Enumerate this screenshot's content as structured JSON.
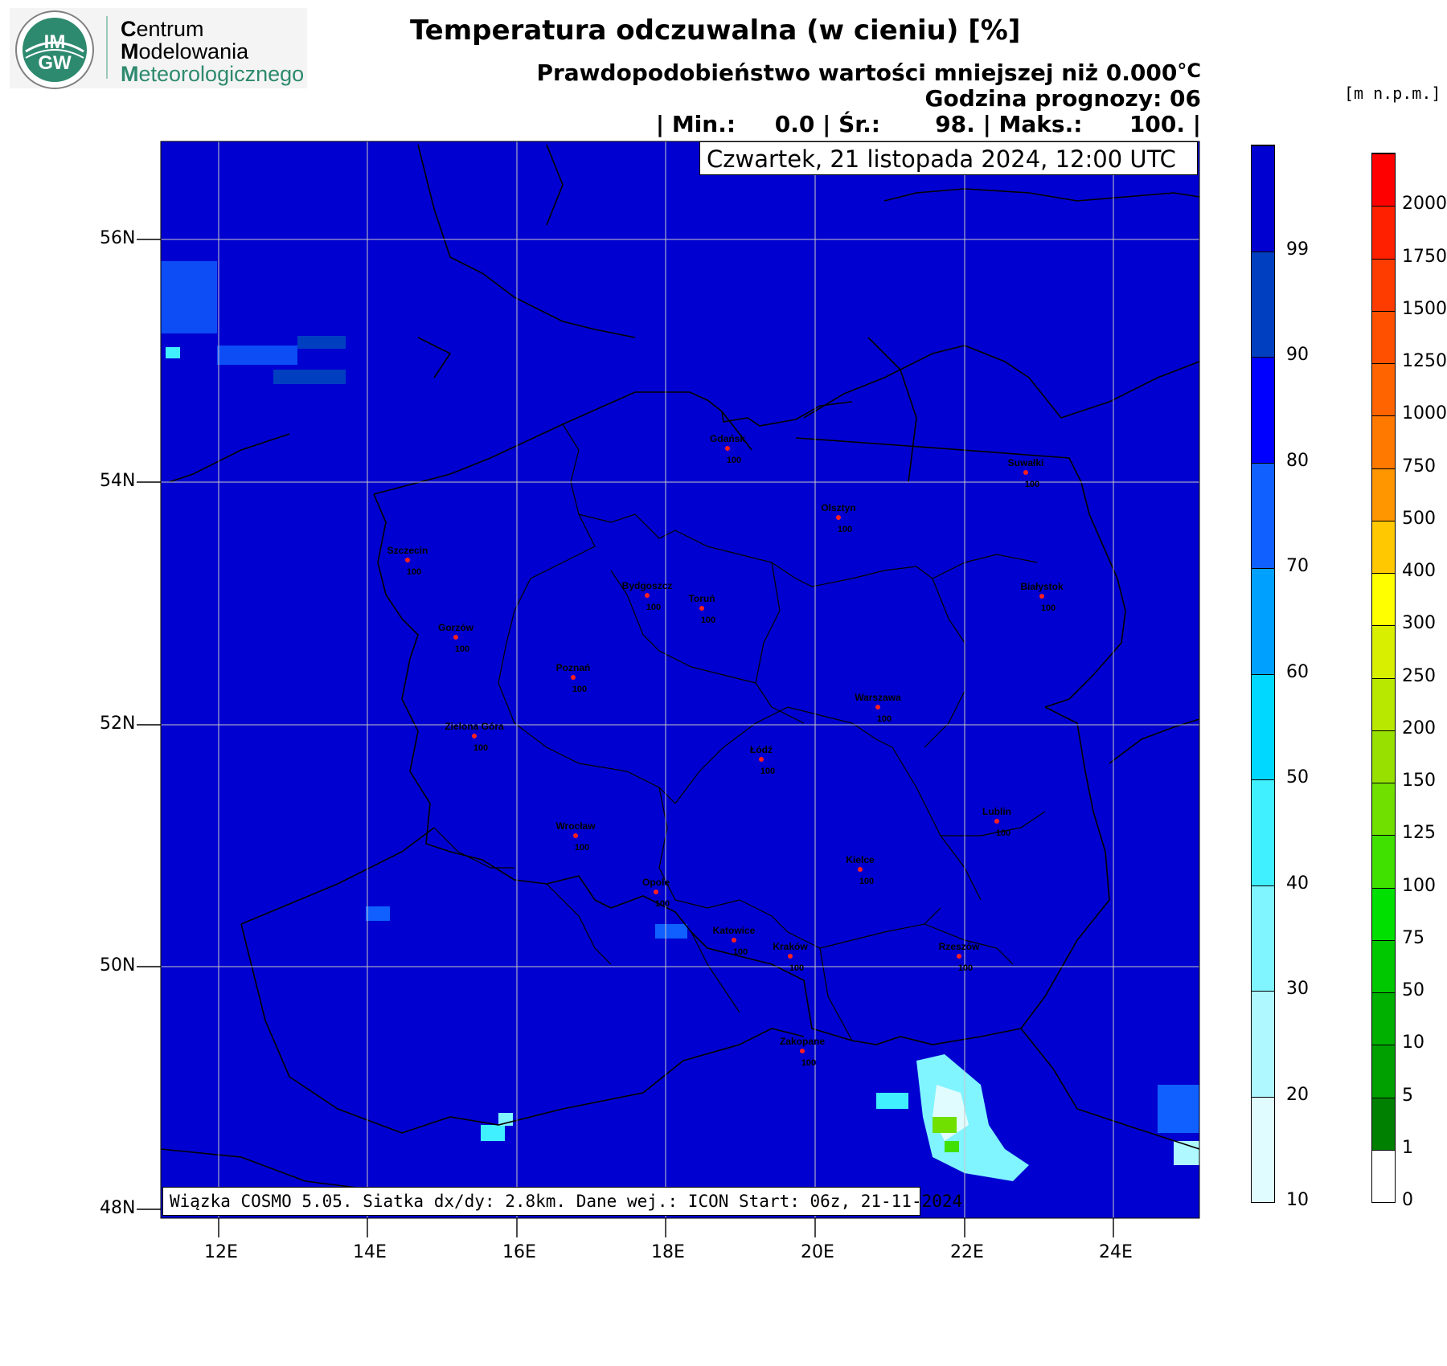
{
  "logo": {
    "badge_text_top": "IM",
    "badge_text_bottom": "GW",
    "line1_initial": "C",
    "line1_rest": "entrum",
    "line2_initial": "M",
    "line2_rest": "odelowania",
    "line3_initial": "M",
    "line3_rest": "eteorologicznego"
  },
  "title": "Temperatura odczuwalna (w cieniu) [%]",
  "subtitle": "Prawdopodobieństwo wartości mniejszej niż 0.000",
  "subtitle_unit": "°C",
  "forecast_hour_label": "Godzina prognozy: 06",
  "stats": {
    "min_label": "| Min.:",
    "min_value": "0.0",
    "avg_label": "| Śr.:",
    "avg_value": "98.",
    "max_label": "| Maks.:",
    "max_value": "100.",
    "end": "|"
  },
  "date_label": "Czwartek, 21 listopada 2024, 12:00 UTC",
  "footer_note": "Wiązka COSMO 5.05. Siatka dx/dy: 2.8km. Dane wej.: ICON Start: 06z, 21-11-2024",
  "elevation_unit": "[m n.p.m.]",
  "lat_labels": [
    "56N",
    "54N",
    "52N",
    "50N",
    "48N"
  ],
  "lon_labels": [
    "12E",
    "14E",
    "16E",
    "18E",
    "20E",
    "22E",
    "24E"
  ],
  "prob_colorbar": {
    "labels": [
      "99",
      "90",
      "80",
      "70",
      "60",
      "50",
      "40",
      "30",
      "20",
      "10"
    ],
    "colors": [
      "#0000d0",
      "#0040c0",
      "#0000ff",
      "#1060ff",
      "#00a0ff",
      "#00d8ff",
      "#40f0ff",
      "#80f4ff",
      "#b0f8ff",
      "#e0fcff"
    ]
  },
  "elev_colorbar": {
    "labels": [
      "2000",
      "1750",
      "1500",
      "1250",
      "1000",
      "750",
      "500",
      "400",
      "300",
      "250",
      "200",
      "150",
      "125",
      "100",
      "75",
      "50",
      "10",
      "5",
      "1",
      "0"
    ],
    "colors": [
      "#ff0000",
      "#ff2000",
      "#ff3c00",
      "#ff5000",
      "#ff6400",
      "#ff7800",
      "#ff9600",
      "#ffc800",
      "#ffff00",
      "#d8f000",
      "#b8e800",
      "#98e000",
      "#70e000",
      "#40e000",
      "#00e000",
      "#00c800",
      "#00b000",
      "#00a000",
      "#008000",
      "#ffffff"
    ]
  },
  "map_fill_color": "#0000d0",
  "cities": [
    {
      "name": "Gdańsk",
      "value": "100"
    },
    {
      "name": "Suwałki",
      "value": "100"
    },
    {
      "name": "Olsztyn",
      "value": "100"
    },
    {
      "name": "Szczecin",
      "value": "100"
    },
    {
      "name": "Bydgoszcz",
      "value": "100"
    },
    {
      "name": "Toruń",
      "value": "100"
    },
    {
      "name": "Białystok",
      "value": "100"
    },
    {
      "name": "Gorzów",
      "value": "100"
    },
    {
      "name": "Poznań",
      "value": "100"
    },
    {
      "name": "Warszawa",
      "value": "100"
    },
    {
      "name": "Zielona Góra",
      "value": "100"
    },
    {
      "name": "Łódź",
      "value": "100"
    },
    {
      "name": "Lublin",
      "value": "100"
    },
    {
      "name": "Wrocław",
      "value": "100"
    },
    {
      "name": "Kielce",
      "value": "100"
    },
    {
      "name": "Opole",
      "value": "100"
    },
    {
      "name": "Katowice",
      "value": "100"
    },
    {
      "name": "Kraków",
      "value": "100"
    },
    {
      "name": "Rzeszów",
      "value": "100"
    },
    {
      "name": "Zakopane",
      "value": "100"
    }
  ]
}
